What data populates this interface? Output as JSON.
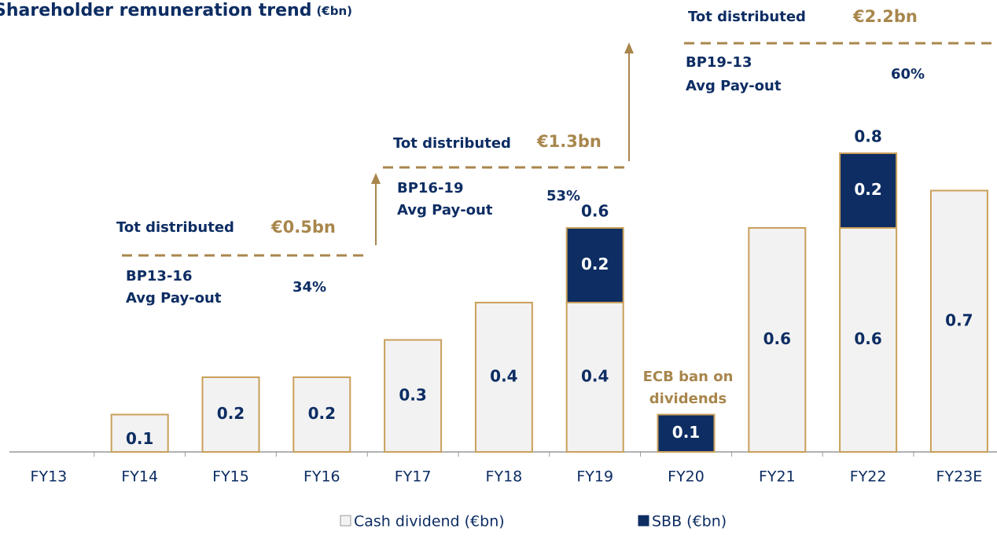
{
  "chart_data": {
    "type": "stacked-bar",
    "title": "Shareholder remuneration trend",
    "title_unit": "(€bn)",
    "categories": [
      "FY13",
      "FY14",
      "FY15",
      "FY16",
      "FY17",
      "FY18",
      "FY19",
      "FY20",
      "FY21",
      "FY22",
      "FY23E"
    ],
    "series": [
      {
        "name": "Cash dividend (€bn)",
        "color": "#f2f2f2",
        "values": [
          null,
          0.1,
          0.2,
          0.2,
          0.3,
          0.4,
          0.4,
          null,
          0.6,
          0.6,
          0.7
        ]
      },
      {
        "name": "SBB (€bn)",
        "color": "#0d2d63",
        "values": [
          null,
          null,
          null,
          null,
          null,
          null,
          0.2,
          0.1,
          null,
          0.2,
          null
        ]
      }
    ],
    "totals": [
      null,
      null,
      null,
      null,
      null,
      null,
      0.6,
      null,
      null,
      0.8,
      null
    ],
    "edge_color": "#c9a05a",
    "annotations": [
      {
        "text": "Tot distributed",
        "color": "#0d2d63"
      },
      {
        "text": "€0.5bn",
        "color": "#a8864c"
      },
      {
        "text": "BP13-16",
        "color": "#0d2d63"
      },
      {
        "text": "Avg Pay-out",
        "color": "#0d2d63"
      },
      {
        "text": "34%",
        "color": "#0d2d63"
      },
      {
        "text": "Tot distributed",
        "color": "#0d2d63"
      },
      {
        "text": "€1.3bn",
        "color": "#a8864c"
      },
      {
        "text": "BP16-19",
        "color": "#0d2d63"
      },
      {
        "text": "Avg Pay-out",
        "color": "#0d2d63"
      },
      {
        "text": "53%",
        "color": "#0d2d63"
      },
      {
        "text": "Tot distributed",
        "color": "#0d2d63"
      },
      {
        "text": "€2.2bn",
        "color": "#a8864c"
      },
      {
        "text": "BP19-13",
        "color": "#0d2d63"
      },
      {
        "text": "Avg Pay-out",
        "color": "#0d2d63"
      },
      {
        "text": "60%",
        "color": "#0d2d63"
      },
      {
        "text": "ECB ban on",
        "color": "#a8864c"
      },
      {
        "text": "dividends",
        "color": "#a8864c"
      }
    ]
  }
}
